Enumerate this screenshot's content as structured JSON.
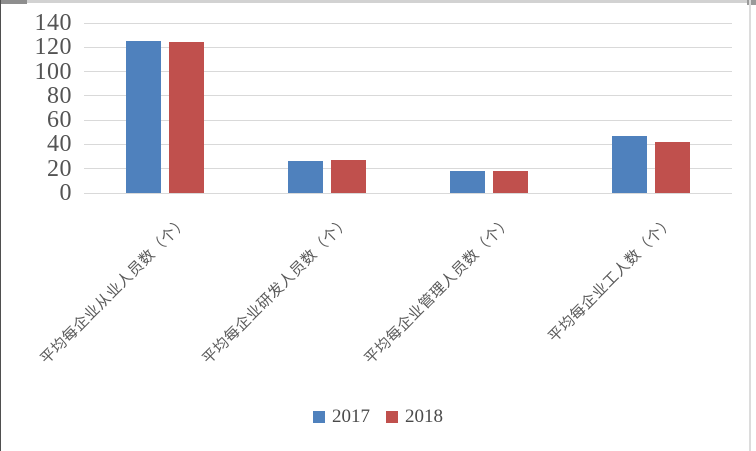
{
  "chart_data": {
    "type": "bar",
    "title": "",
    "xlabel": "",
    "ylabel": "",
    "categories": [
      "平均每企业从业人员数（个）",
      "平均每企业研发人员数（个）",
      "平均每企业管理人员数（个）",
      "平均每企业工人数（个）"
    ],
    "series": [
      {
        "name": "2017",
        "color": "#4F81BD",
        "values": [
          125,
          26,
          18,
          47
        ]
      },
      {
        "name": "2018",
        "color": "#C0504D",
        "values": [
          124,
          27,
          18,
          42
        ]
      }
    ],
    "ylim": [
      0,
      140
    ],
    "yticks": [
      0,
      20,
      40,
      60,
      80,
      100,
      120,
      140
    ],
    "grid": true,
    "gridline_color": "#D9D9D9",
    "legend_position": "bottom",
    "legend_labels": [
      "2017",
      "2018"
    ]
  },
  "colors": {
    "bar_2017": "#4F81BD",
    "bar_2018": "#C0504D",
    "gridline": "#D9D9D9",
    "axis_text": "#545454",
    "category_text": "#595959",
    "background": "#FFFFFF"
  }
}
